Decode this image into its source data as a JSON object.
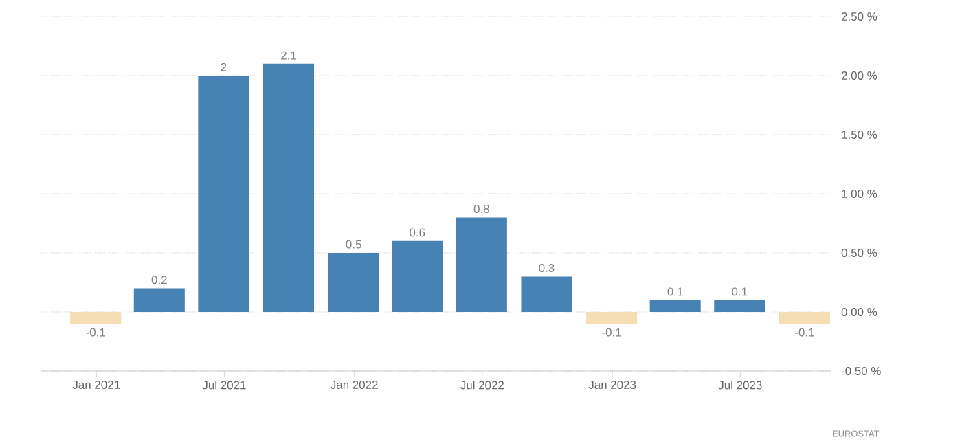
{
  "chart_data": {
    "type": "bar",
    "x": [
      "2020-12-31",
      "2021-03-31",
      "2021-06-30",
      "2021-09-30",
      "2021-12-31",
      "2022-03-31",
      "2022-06-30",
      "2022-09-30",
      "2022-12-31",
      "2023-03-31",
      "2023-06-30",
      "2023-09-30"
    ],
    "values": [
      -0.1,
      0.2,
      2,
      2.1,
      0.5,
      0.6,
      0.8,
      0.3,
      -0.1,
      0.1,
      0.1,
      -0.1
    ],
    "value_labels": [
      "-0.1",
      "0.2",
      "2",
      "2.1",
      "0.5",
      "0.6",
      "0.8",
      "0.3",
      "-0.1",
      "0.1",
      "0.1",
      "-0.1"
    ],
    "colors": [
      "#f5deb3",
      "#4682b4",
      "#4682b4",
      "#4682b4",
      "#4682b4",
      "#4682b4",
      "#4682b4",
      "#4682b4",
      "#f5deb3",
      "#4682b4",
      "#4682b4",
      "#f5deb3"
    ],
    "xlim": [
      "2020-10-15",
      "2023-11-07"
    ],
    "xticks": [
      {
        "value": "2021-01",
        "label": "Jan 2021"
      },
      {
        "value": "2021-07",
        "label": "Jul 2021"
      },
      {
        "value": "2022-01",
        "label": "Jan 2022"
      },
      {
        "value": "2022-07",
        "label": "Jul 2022"
      },
      {
        "value": "2023-01",
        "label": "Jan 2023"
      },
      {
        "value": "2023-07",
        "label": "Jul 2023"
      }
    ],
    "ylim": [
      -0.5,
      2.5
    ],
    "yticks": [
      {
        "value": 2.5,
        "label": "2.50 %"
      },
      {
        "value": 2.0,
        "label": "2.00 %"
      },
      {
        "value": 1.5,
        "label": "1.50 %"
      },
      {
        "value": 1.0,
        "label": "1.00 %"
      },
      {
        "value": 0.5,
        "label": "0.50 %"
      },
      {
        "value": 0.0,
        "label": "0.00 %"
      },
      {
        "value": -0.5,
        "label": "-0.50 %"
      }
    ],
    "grid": "y",
    "annotations": [
      "EUROSTAT"
    ]
  }
}
